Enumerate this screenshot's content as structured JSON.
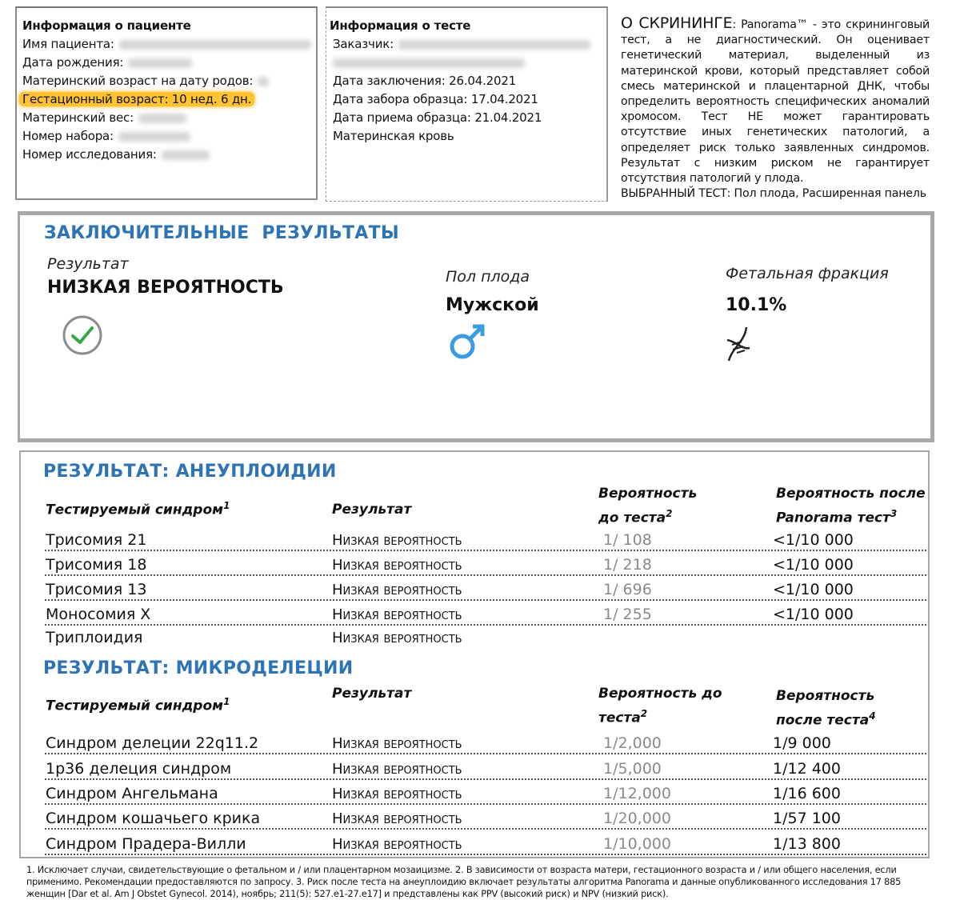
{
  "patient": {
    "title": "Информация о пациенте",
    "fields": [
      "Имя пациента:",
      "Дата рождения:",
      "Материнский возраст на дату родов:",
      "Гестационный возраст: 10 нед. 6 дн.",
      "Материнский вес:",
      "Номер набора:",
      "Номер исследования:"
    ]
  },
  "test": {
    "title": "Информация о тесте",
    "fields": [
      "Заказчик:",
      "",
      "Дата заключения: 26.04.2021",
      "Дата забора образца: 17.04.2021",
      "Дата приема образца: 21.04.2021",
      "Материнская кровь"
    ]
  },
  "about": {
    "heading": "О СКРИНИНГЕ",
    "text": ": Panorama™ - это скрининговый тест, а не диагностический. Он оценивает генетический материал, выделенный из материнской крови, который представляет собой смесь материнской и плацентарной ДНК, чтобы определить вероятность специфических аномалий хромосом. Тест НЕ может гарантировать отсутствие иных генетических патологий, а определяет риск только заявленных синдромов. Результат с низким риском не гарантирует отсутствия патологий у плода.",
    "selected": "ВЫБРАННЫЙ ТЕСТ: Пол плода, Расширенная панель"
  },
  "final": {
    "title": "ЗАКЛЮЧИТЕЛЬНЫЕ  РЕЗУЛЬТАТЫ",
    "result_label": "Результат",
    "result_value": "НИЗКАЯ ВЕРОЯТНОСТЬ",
    "sex_label": "Пол плода",
    "sex_value": "Мужской",
    "fraction_label": "Фетальная фракция",
    "fraction_value": "10.1%",
    "icons": [
      "check-circle-icon",
      "male-symbol-icon",
      "dna-icon"
    ],
    "accent_color": "#2e74b5"
  },
  "aneuploidy": {
    "title": "РЕЗУЛЬТАТ: АНЕУПЛОИДИИ",
    "headers": [
      "Тестируемый синдром",
      "Результат",
      "Вероятность до теста",
      "Вероятность после Panorama тест"
    ],
    "header_sups": [
      "1",
      "",
      "2",
      "3"
    ],
    "rows": [
      [
        "Трисомия 21",
        "Низкая вероятность",
        "1/ 108",
        "<1/10 000"
      ],
      [
        "Трисомия 18",
        "Низкая вероятность",
        "1/ 218",
        "<1/10 000"
      ],
      [
        "Трисомия 13",
        "Низкая вероятность",
        "1/ 696",
        "<1/10 000"
      ],
      [
        "Моносомия X",
        "Низкая вероятность",
        "1/ 255",
        "<1/10 000"
      ],
      [
        "Триплоидия",
        "Низкая вероятность",
        "",
        ""
      ]
    ]
  },
  "microdeletions": {
    "title": "РЕЗУЛЬТАТ: МИКРОДЕЛЕЦИИ",
    "headers": [
      "Тестируемый синдром",
      "Результат",
      "Вероятность до теста",
      "Вероятность после теста"
    ],
    "header_sups": [
      "1",
      "",
      "2",
      "4"
    ],
    "rows": [
      [
        "Синдром делеции 22q11.2",
        "Низкая вероятность",
        "1/2,000",
        "1/9 000"
      ],
      [
        "1p36 делеция синдром",
        "Низкая вероятность",
        "1/5,000",
        "1/12 400"
      ],
      [
        "Синдром Ангельмана",
        "Низкая вероятность",
        "1/12,000",
        "1/16 600"
      ],
      [
        "Синдром кошачьего крика",
        "Низкая вероятность",
        "1/20,000",
        "1/57 100"
      ],
      [
        "Синдром Прадера-Вилли",
        "Низкая вероятность",
        "1/10,000",
        "1/13 800"
      ]
    ]
  },
  "footnotes": "1. Исключает случаи, свидетельствующие о фетальном и / или плацентарном мозаицизме. 2. В зависимости от возраста матери, гестационного возраста и / или общего населения, если применимо. Рекомендации предоставляются по запросу. 3. Риск после теста на анеуплоидию включает результаты алгоритма Panorama и данные опубликованного исследования 17 885 женщин [Dar et al. Am J Obstet Gynecol. 2014), ноябрь; 211(5): 527.e1-27.e17] и представлены как PPV (высокий риск) и NPV (низкий риск)."
}
